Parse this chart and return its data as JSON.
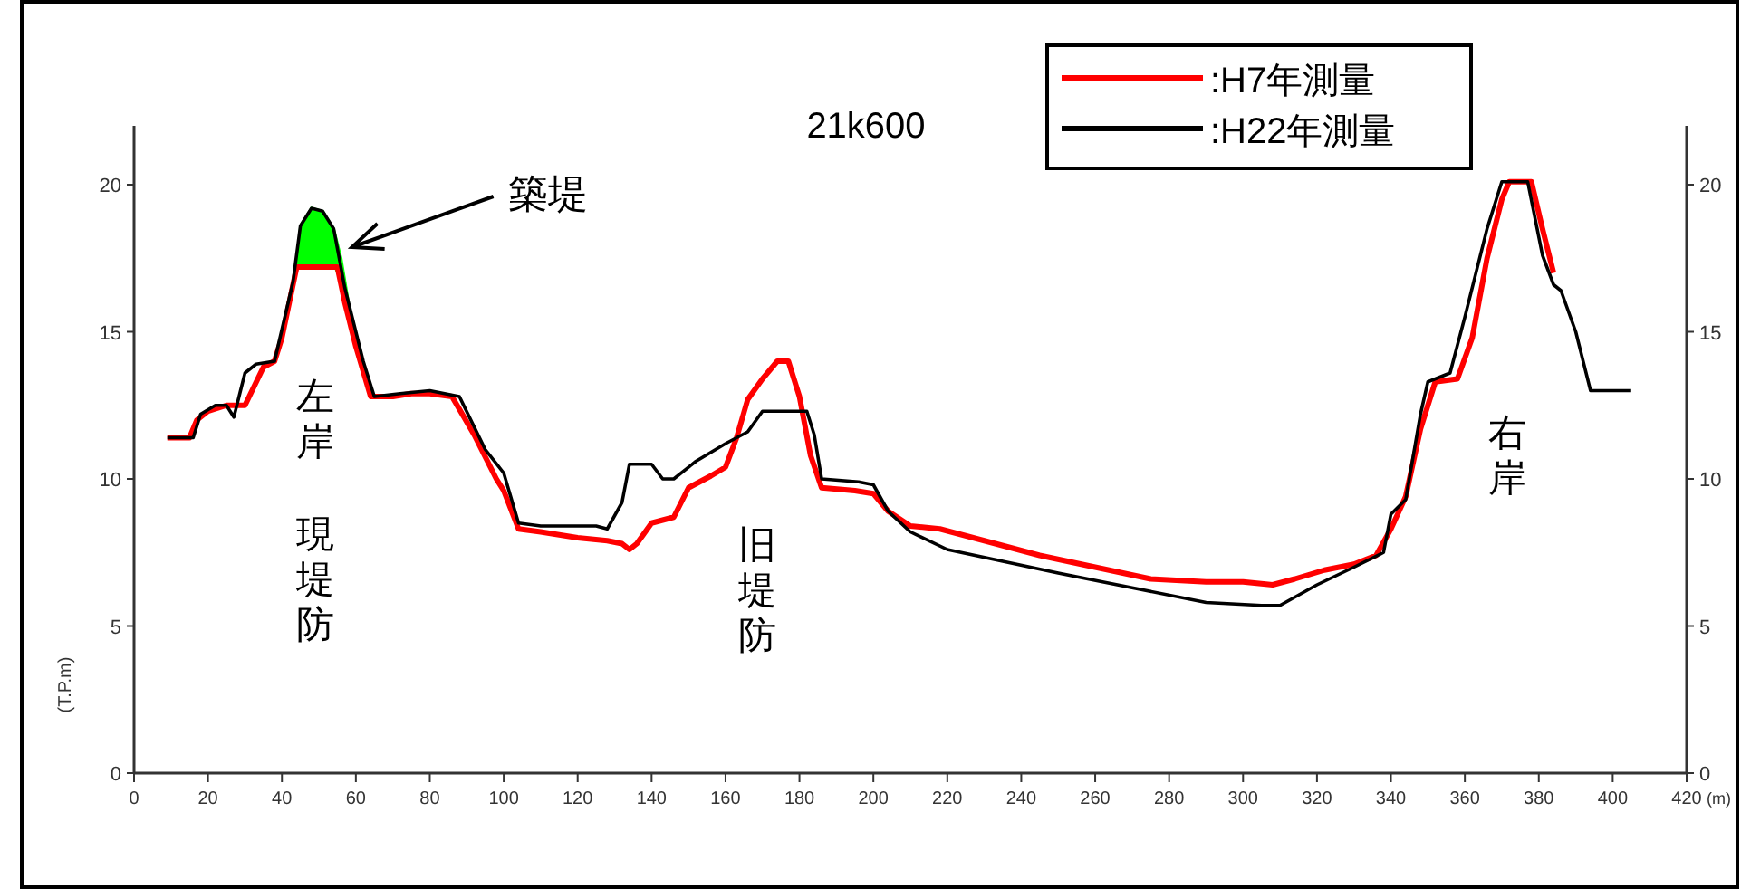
{
  "chart_data": {
    "type": "line",
    "title": "21k600",
    "xlabel": "(m)",
    "ylabel": "(T.P.m)",
    "xlim": [
      0,
      420
    ],
    "xticks": [
      0,
      20,
      40,
      60,
      80,
      100,
      120,
      140,
      160,
      180,
      200,
      220,
      240,
      260,
      280,
      300,
      320,
      340,
      360,
      380,
      400,
      420
    ],
    "ylim": [
      0,
      22
    ],
    "yticks": [
      0,
      5,
      10,
      15,
      20
    ],
    "y2lim": [
      0,
      22
    ],
    "y2ticks": [
      0,
      5,
      10,
      15,
      20
    ],
    "legend": "top right",
    "series": [
      {
        "type": "area",
        "color": "#00ff00",
        "x": [
          44,
          45,
          48,
          51,
          54,
          56,
          58
        ],
        "values": [
          17.2,
          18.6,
          19.2,
          19.1,
          18.5,
          17.5,
          16.0
        ]
      },
      {
        "name": ":H7年測量",
        "color": "#ff0000",
        "x": [
          9,
          15,
          17,
          20,
          25,
          30,
          35,
          38,
          40,
          44,
          46,
          55,
          57,
          60,
          64,
          70,
          75,
          80,
          86,
          92,
          98,
          100,
          104,
          110,
          120,
          128,
          132,
          134,
          136,
          140,
          146,
          150,
          156,
          160,
          163,
          166,
          170,
          174,
          177,
          180,
          183,
          186,
          195,
          200,
          204,
          210,
          218,
          230,
          245,
          260,
          275,
          290,
          300,
          308,
          314,
          322,
          330,
          336,
          340,
          344,
          348,
          352,
          358,
          362,
          366,
          370,
          372,
          378,
          381,
          384
        ],
        "values": [
          11.4,
          11.4,
          12.0,
          12.3,
          12.5,
          12.5,
          13.8,
          14.0,
          14.8,
          17.2,
          17.2,
          17.2,
          16.0,
          14.5,
          12.8,
          12.8,
          12.9,
          12.9,
          12.8,
          11.5,
          10.0,
          9.6,
          8.3,
          8.2,
          8.0,
          7.9,
          7.8,
          7.6,
          7.8,
          8.5,
          8.7,
          9.7,
          10.1,
          10.4,
          11.4,
          12.7,
          13.4,
          14.0,
          14.0,
          12.8,
          10.8,
          9.7,
          9.6,
          9.5,
          8.9,
          8.4,
          8.3,
          7.9,
          7.4,
          7.0,
          6.6,
          6.5,
          6.5,
          6.4,
          6.6,
          6.9,
          7.1,
          7.4,
          8.3,
          9.4,
          11.7,
          13.3,
          13.4,
          14.8,
          17.5,
          19.5,
          20.1,
          20.1,
          18.5,
          17.0
        ]
      },
      {
        "name": ":H22年測量",
        "color": "#000000",
        "x": [
          9,
          16,
          18,
          22,
          25,
          27,
          30,
          33,
          38,
          43,
          45,
          48,
          51,
          54,
          57,
          62,
          65,
          72,
          80,
          88,
          95,
          100,
          104,
          110,
          125,
          128,
          132,
          134,
          140,
          143,
          146,
          152,
          160,
          166,
          170,
          182,
          184,
          186,
          196,
          200,
          204,
          210,
          220,
          235,
          250,
          270,
          290,
          305,
          310,
          320,
          330,
          338,
          340,
          344,
          348,
          350,
          356,
          360,
          366,
          370,
          377,
          381,
          384,
          386,
          390,
          394,
          405
        ],
        "values": [
          11.4,
          11.4,
          12.2,
          12.5,
          12.5,
          12.1,
          13.6,
          13.9,
          14.0,
          16.7,
          18.6,
          19.2,
          19.1,
          18.5,
          16.5,
          14.0,
          12.8,
          12.9,
          13.0,
          12.8,
          11.0,
          10.2,
          8.5,
          8.4,
          8.4,
          8.3,
          9.2,
          10.5,
          10.5,
          10.0,
          10.0,
          10.6,
          11.2,
          11.6,
          12.3,
          12.3,
          11.5,
          10.0,
          9.9,
          9.8,
          8.9,
          8.2,
          7.6,
          7.2,
          6.8,
          6.3,
          5.8,
          5.7,
          5.7,
          6.4,
          7.0,
          7.5,
          8.8,
          9.3,
          12.2,
          13.3,
          13.6,
          15.5,
          18.5,
          20.1,
          20.1,
          17.6,
          16.6,
          16.4,
          15.0,
          13.0,
          13.0
        ]
      }
    ],
    "annotations": [
      {
        "text": "築堤",
        "x": 57,
        "y": 18
      },
      "左岸",
      "現堤防",
      "旧堤防",
      "右岸"
    ]
  }
}
